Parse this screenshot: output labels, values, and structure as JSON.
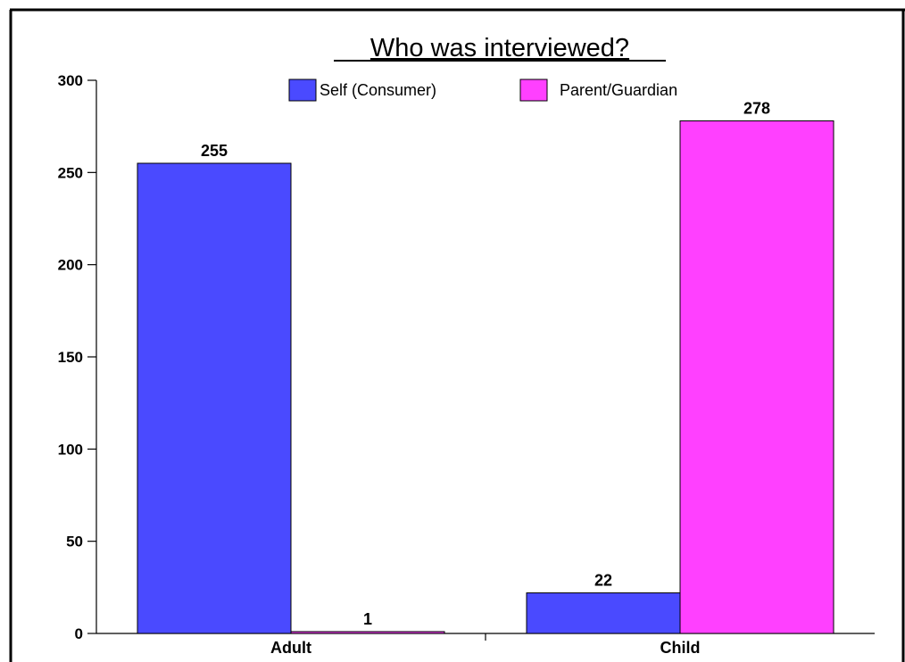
{
  "chart_data": {
    "type": "bar",
    "title": "Who was interviewed?",
    "xlabel": "",
    "ylabel": "",
    "categories": [
      "Adult",
      "Child"
    ],
    "series": [
      {
        "name": "Self (Consumer)",
        "color": "#4a4aff",
        "values": [
          255,
          22
        ]
      },
      {
        "name": "Parent/Guardian",
        "color": "#ff40ff",
        "values": [
          1,
          278
        ]
      }
    ],
    "ylim": [
      0,
      300
    ],
    "yticks": [
      0,
      50,
      100,
      150,
      200,
      250,
      300
    ],
    "grid": false,
    "legend_position": "top-center",
    "data_labels": true
  }
}
